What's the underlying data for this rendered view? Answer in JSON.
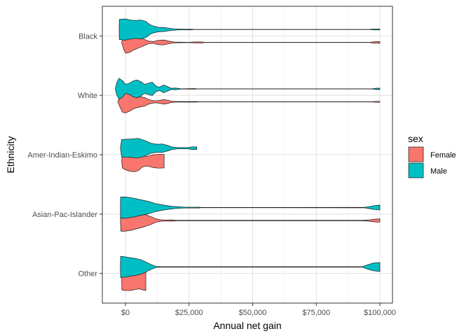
{
  "chart_data": {
    "type": "violin",
    "orientation": "horizontal",
    "xlabel": "Annual net gain",
    "ylabel": "Ethnicity",
    "xlim": [
      -5000,
      100000
    ],
    "x_ticks": [
      0,
      25000,
      50000,
      75000,
      100000
    ],
    "x_tick_labels": [
      "$0",
      "$25,000",
      "$50,000",
      "$75,000",
      "$100,000"
    ],
    "categories": [
      "Black",
      "White",
      "Amer-Indian-Eskimo",
      "Asian-Pac-Islander",
      "Other"
    ],
    "grid": true,
    "legend": {
      "title": "sex",
      "placement": "right",
      "entries": [
        {
          "label": "Female",
          "color": "#F8766D"
        },
        {
          "label": "Male",
          "color": "#00BFC4"
        }
      ]
    },
    "series": [
      {
        "name": "Female",
        "color": "#F8766D",
        "violins": [
          {
            "category": "Black",
            "profile": [
              [
                -1500,
                0.0
              ],
              [
                -800,
                0.55
              ],
              [
                0,
                0.95
              ],
              [
                1500,
                0.9
              ],
              [
                3000,
                0.7
              ],
              [
                5000,
                0.5
              ],
              [
                7000,
                0.32
              ],
              [
                9000,
                0.12
              ],
              [
                11000,
                0.08
              ],
              [
                13000,
                0.2
              ],
              [
                15000,
                0.22
              ],
              [
                17000,
                0.12
              ],
              [
                19000,
                0.04
              ],
              [
                25000,
                0.01
              ],
              [
                27000,
                0.05
              ],
              [
                30000,
                0.05
              ],
              [
                31000,
                0.01
              ],
              [
                96000,
                0.01
              ],
              [
                97500,
                0.06
              ],
              [
                99000,
                0.08
              ],
              [
                100000,
                0.08
              ]
            ]
          },
          {
            "category": "White",
            "profile": [
              [
                -3000,
                0.0
              ],
              [
                -2200,
                0.45
              ],
              [
                -1200,
                0.92
              ],
              [
                0,
                1.0
              ],
              [
                1500,
                0.85
              ],
              [
                3000,
                0.65
              ],
              [
                4500,
                0.52
              ],
              [
                6000,
                0.45
              ],
              [
                7500,
                0.38
              ],
              [
                9000,
                0.22
              ],
              [
                10500,
                0.12
              ],
              [
                12000,
                0.08
              ],
              [
                13500,
                0.14
              ],
              [
                15000,
                0.2
              ],
              [
                16500,
                0.15
              ],
              [
                18000,
                0.06
              ],
              [
                20000,
                0.03
              ],
              [
                26000,
                0.02
              ],
              [
                27500,
                0.03
              ],
              [
                29000,
                0.01
              ],
              [
                97000,
                0.01
              ],
              [
                98500,
                0.04
              ],
              [
                100000,
                0.04
              ]
            ]
          },
          {
            "category": "Amer-Indian-Eskimo",
            "profile": [
              [
                -1500,
                0.0
              ],
              [
                -1200,
                0.6
              ],
              [
                0,
                0.78
              ],
              [
                2000,
                0.9
              ],
              [
                3500,
                0.95
              ],
              [
                5000,
                0.85
              ],
              [
                6500,
                0.55
              ],
              [
                8000,
                0.42
              ],
              [
                9500,
                0.48
              ],
              [
                11000,
                0.58
              ],
              [
                13000,
                0.62
              ],
              [
                15200,
                0.6
              ],
              [
                15200,
                0.0
              ]
            ]
          },
          {
            "category": "Asian-Pac-Islander",
            "profile": [
              [
                -2000,
                0.0
              ],
              [
                -1800,
                0.95
              ],
              [
                0,
                0.95
              ],
              [
                2500,
                0.85
              ],
              [
                5000,
                0.7
              ],
              [
                7500,
                0.55
              ],
              [
                10000,
                0.35
              ],
              [
                12000,
                0.15
              ],
              [
                14000,
                0.06
              ],
              [
                16000,
                0.04
              ],
              [
                18000,
                0.06
              ],
              [
                20000,
                0.02
              ],
              [
                93000,
                0.02
              ],
              [
                96000,
                0.06
              ],
              [
                98000,
                0.12
              ],
              [
                100000,
                0.15
              ]
            ]
          },
          {
            "category": "Other",
            "profile": [
              [
                -1500,
                0.0
              ],
              [
                -1400,
                0.9
              ],
              [
                0,
                0.95
              ],
              [
                2000,
                0.95
              ],
              [
                4000,
                0.85
              ],
              [
                5500,
                0.8
              ],
              [
                7000,
                0.9
              ],
              [
                8000,
                0.95
              ],
              [
                8000,
                0.0
              ]
            ]
          }
        ]
      },
      {
        "name": "Male",
        "color": "#00BFC4",
        "violins": [
          {
            "category": "Black",
            "profile": [
              [
                -2500,
                0.0
              ],
              [
                -2400,
                0.9
              ],
              [
                0,
                0.95
              ],
              [
                2000,
                0.85
              ],
              [
                4000,
                0.8
              ],
              [
                6000,
                0.85
              ],
              [
                8000,
                0.72
              ],
              [
                9500,
                0.45
              ],
              [
                11000,
                0.3
              ],
              [
                13000,
                0.2
              ],
              [
                15000,
                0.18
              ],
              [
                17000,
                0.12
              ],
              [
                19000,
                0.06
              ],
              [
                21000,
                0.04
              ],
              [
                24000,
                0.02
              ],
              [
                26000,
                0.03
              ],
              [
                27000,
                0.01
              ],
              [
                96000,
                0.01
              ],
              [
                97500,
                0.04
              ],
              [
                100000,
                0.04
              ]
            ]
          },
          {
            "category": "White",
            "profile": [
              [
                -4000,
                0.0
              ],
              [
                -3500,
                0.5
              ],
              [
                -2500,
                0.95
              ],
              [
                -1000,
                0.7
              ],
              [
                0,
                0.4
              ],
              [
                1500,
                0.5
              ],
              [
                3000,
                0.7
              ],
              [
                4500,
                0.8
              ],
              [
                6000,
                0.65
              ],
              [
                7500,
                0.4
              ],
              [
                9000,
                0.5
              ],
              [
                10500,
                0.6
              ],
              [
                12000,
                0.25
              ],
              [
                13500,
                0.15
              ],
              [
                15000,
                0.35
              ],
              [
                16500,
                0.2
              ],
              [
                18000,
                0.05
              ],
              [
                19500,
                0.08
              ],
              [
                21000,
                0.04
              ],
              [
                22000,
                0.01
              ],
              [
                27000,
                0.03
              ],
              [
                28000,
                0.01
              ],
              [
                97000,
                0.01
              ],
              [
                98500,
                0.06
              ],
              [
                100000,
                0.06
              ]
            ]
          },
          {
            "category": "Amer-Indian-Eskimo",
            "profile": [
              [
                -2000,
                0.0
              ],
              [
                -1500,
                0.78
              ],
              [
                0,
                0.8
              ],
              [
                2500,
                0.82
              ],
              [
                5000,
                0.88
              ],
              [
                7500,
                0.7
              ],
              [
                10000,
                0.45
              ],
              [
                12500,
                0.35
              ],
              [
                14500,
                0.38
              ],
              [
                16500,
                0.25
              ],
              [
                18500,
                0.1
              ],
              [
                20500,
                0.06
              ],
              [
                22500,
                0.06
              ],
              [
                24500,
                0.05
              ],
              [
                26000,
                0.12
              ],
              [
                28000,
                0.12
              ],
              [
                28000,
                0.0
              ]
            ]
          },
          {
            "category": "Asian-Pac-Islander",
            "profile": [
              [
                -2000,
                0.0
              ],
              [
                -1900,
                0.95
              ],
              [
                0,
                0.95
              ],
              [
                3000,
                0.85
              ],
              [
                6000,
                0.7
              ],
              [
                9000,
                0.55
              ],
              [
                12000,
                0.35
              ],
              [
                15000,
                0.22
              ],
              [
                18000,
                0.12
              ],
              [
                20000,
                0.08
              ],
              [
                23000,
                0.04
              ],
              [
                27000,
                0.03
              ],
              [
                29000,
                0.04
              ],
              [
                30000,
                0.01
              ],
              [
                94000,
                0.02
              ],
              [
                96000,
                0.1
              ],
              [
                98000,
                0.18
              ],
              [
                100000,
                0.22
              ]
            ]
          },
          {
            "category": "Other",
            "profile": [
              [
                -2000,
                0.0
              ],
              [
                -1900,
                0.95
              ],
              [
                0,
                0.9
              ],
              [
                2000,
                0.82
              ],
              [
                4000,
                0.75
              ],
              [
                6000,
                0.65
              ],
              [
                8000,
                0.45
              ],
              [
                10000,
                0.22
              ],
              [
                12000,
                0.05
              ],
              [
                14000,
                0.02
              ],
              [
                93000,
                0.02
              ],
              [
                95000,
                0.18
              ],
              [
                97500,
                0.35
              ],
              [
                100000,
                0.4
              ]
            ]
          }
        ]
      }
    ]
  }
}
